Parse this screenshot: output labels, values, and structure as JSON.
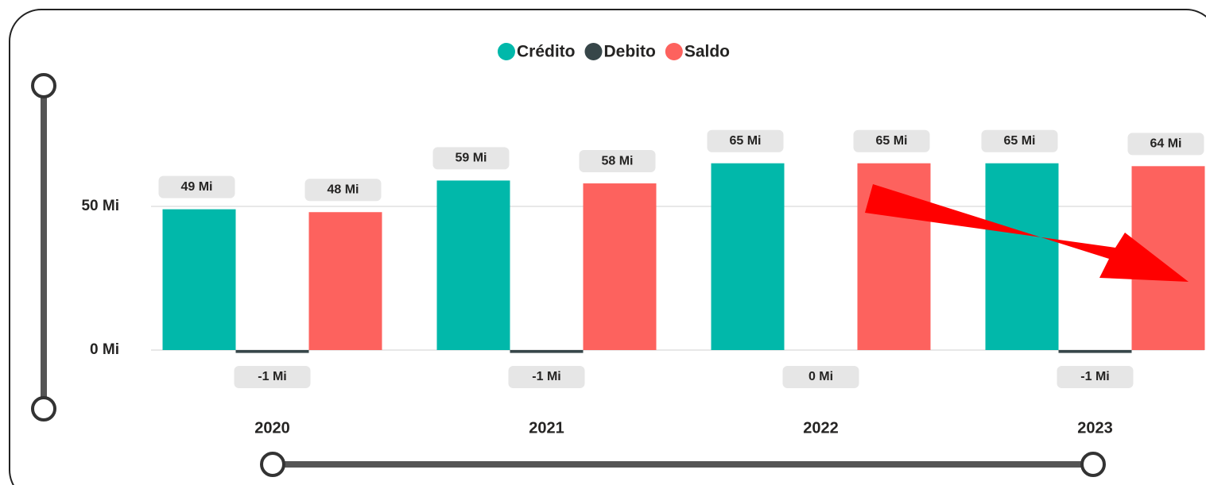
{
  "chart_data": {
    "type": "bar",
    "categories": [
      "2020",
      "2021",
      "2022",
      "2023"
    ],
    "series": [
      {
        "name": "Crédito",
        "color": "#01b8aa",
        "values": [
          49,
          59,
          65,
          65
        ],
        "value_labels": [
          "49 Mi",
          "59 Mi",
          "65 Mi",
          "65 Mi"
        ]
      },
      {
        "name": "Debito",
        "color": "#374649",
        "values": [
          -1,
          -1,
          0,
          -1
        ],
        "value_labels": [
          "-1 Mi",
          "-1 Mi",
          "0 Mi",
          "-1 Mi"
        ]
      },
      {
        "name": "Saldo",
        "color": "#fd625e",
        "values": [
          48,
          58,
          65,
          64
        ],
        "value_labels": [
          "48 Mi",
          "58 Mi",
          "65 Mi",
          "64 Mi"
        ]
      }
    ],
    "ylim": [
      -3,
      80
    ],
    "yticks": [
      {
        "value": 0,
        "label": "0 Mi"
      },
      {
        "value": 50,
        "label": "50 Mi"
      }
    ],
    "grid": true,
    "legend": "top"
  }
}
